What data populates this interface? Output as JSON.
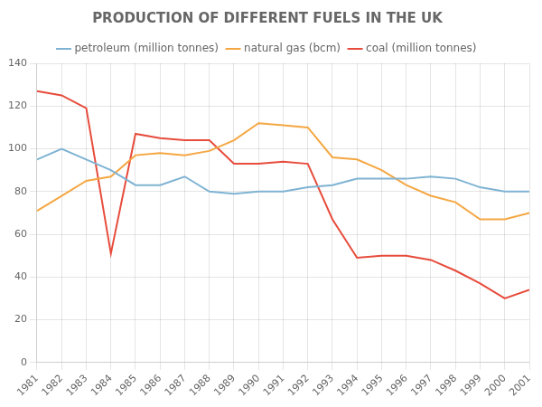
{
  "chart_data": {
    "type": "line",
    "title": "PRODUCTION OF DIFFERENT FUELS IN THE UK",
    "x": [
      1981,
      1982,
      1983,
      1984,
      1985,
      1986,
      1987,
      1988,
      1989,
      1990,
      1991,
      1992,
      1993,
      1994,
      1995,
      1996,
      1997,
      1998,
      1999,
      2000,
      2001
    ],
    "series": [
      {
        "name": "petroleum (million tonnes)",
        "color": "#7fb3d3",
        "values": [
          95,
          100,
          95,
          90,
          83,
          83,
          87,
          80,
          79,
          80,
          80,
          82,
          83,
          86,
          86,
          86,
          87,
          86,
          82,
          80,
          80
        ]
      },
      {
        "name": "natural gas (bcm)",
        "color": "#f4a742",
        "values": [
          71,
          78,
          85,
          87,
          97,
          98,
          97,
          99,
          104,
          112,
          111,
          110,
          96,
          95,
          90,
          83,
          78,
          75,
          67,
          67,
          70
        ]
      },
      {
        "name": "coal (million tonnes)",
        "color": "#e74c3c",
        "values": [
          127,
          125,
          119,
          51,
          107,
          105,
          104,
          104,
          93,
          93,
          94,
          93,
          67,
          49,
          50,
          50,
          48,
          43,
          37,
          30,
          34
        ]
      }
    ],
    "xlim": [
      1981,
      2001
    ],
    "xticks": [
      1981,
      1982,
      1983,
      1984,
      1985,
      1986,
      1987,
      1988,
      1989,
      1990,
      1991,
      1992,
      1993,
      1994,
      1995,
      1996,
      1997,
      1998,
      1999,
      2000,
      2001
    ],
    "ylim": [
      0,
      140
    ],
    "yticks": [
      0,
      20,
      40,
      60,
      80,
      100,
      120,
      140
    ],
    "grid": true,
    "legend": "top"
  }
}
